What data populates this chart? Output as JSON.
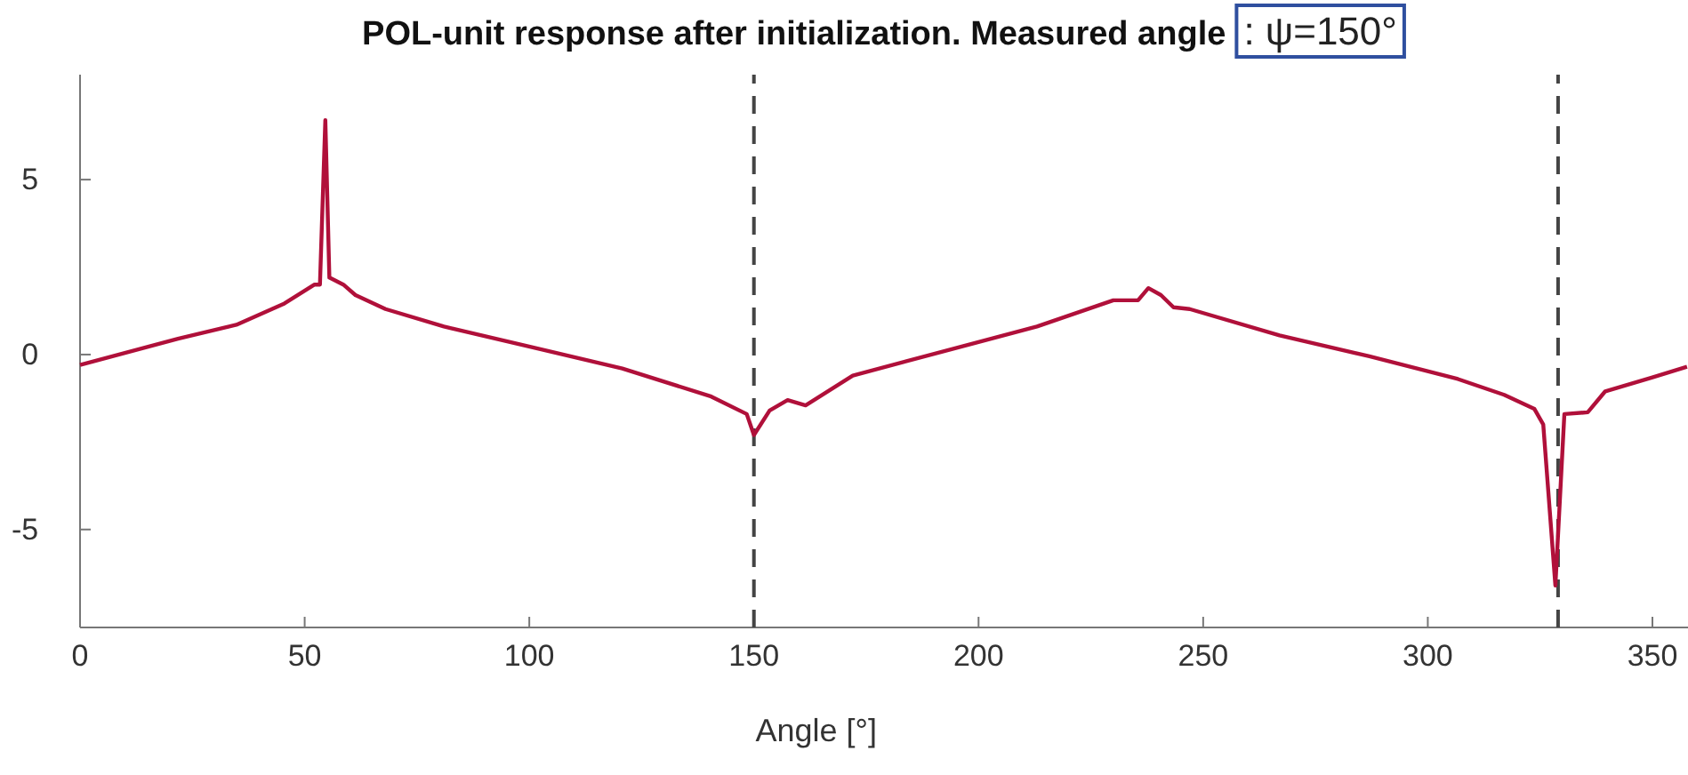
{
  "chart_data": {
    "type": "line",
    "title": "POL-unit response after initialization. Measured angle",
    "annotations": [
      ": ψ=150°"
    ],
    "xlabel": "Angle [°]",
    "x": [
      0,
      21.8,
      34.8,
      45.5,
      52.2,
      53.4,
      54.6,
      55.5,
      58.6,
      61.3,
      68,
      81,
      101,
      120.7,
      140.5,
      148.4,
      150,
      153.5,
      157.5,
      161.5,
      172,
      199.8,
      213,
      230,
      235.5,
      237.8,
      240.6,
      243.4,
      247,
      267,
      287,
      306.7,
      317,
      323.7,
      325.7,
      328.4,
      330.4,
      335.6,
      339.5,
      350,
      357.7
    ],
    "series": [
      {
        "color": "#b0103a",
        "values": [
          -0.3,
          0.45,
          0.85,
          1.46,
          2.0,
          2.0,
          6.7,
          2.2,
          2.0,
          1.7,
          1.3,
          0.8,
          0.2,
          -0.4,
          -1.2,
          -1.7,
          -2.3,
          -1.6,
          -1.3,
          -1.45,
          -0.6,
          0.35,
          0.8,
          1.55,
          1.55,
          1.9,
          1.7,
          1.35,
          1.3,
          0.55,
          -0.05,
          -0.7,
          -1.15,
          -1.55,
          -2.0,
          -6.6,
          -1.7,
          -1.65,
          -1.05,
          -0.65,
          -0.35
        ]
      }
    ],
    "xlim": [
      0,
      360
    ],
    "ylim": [
      -7.8,
      8
    ],
    "xticks": [
      0,
      50,
      100,
      150,
      200,
      250,
      300,
      350
    ],
    "yticks": [
      -5,
      0,
      5
    ],
    "grid": false,
    "marker": "none",
    "line_style": "solid",
    "ref_lines": [
      {
        "axis": "x",
        "value": 150,
        "color": "#444444",
        "line_style": "dashed"
      },
      {
        "axis": "x",
        "value": 329,
        "color": "#444444",
        "line_style": "dashed"
      }
    ]
  }
}
